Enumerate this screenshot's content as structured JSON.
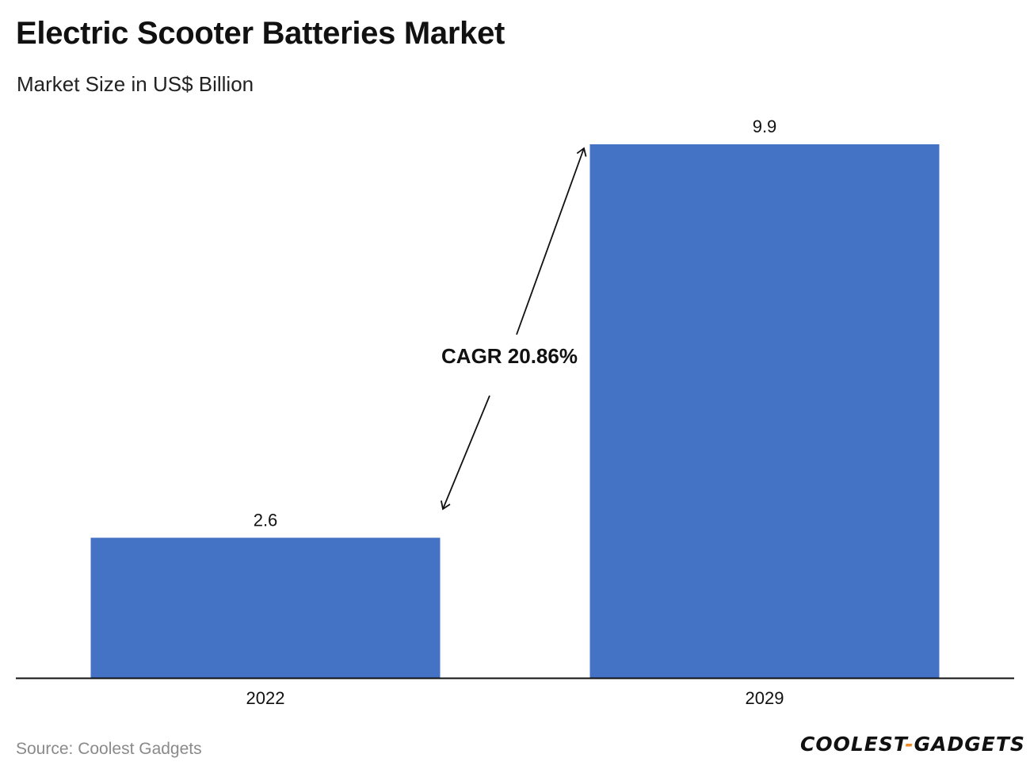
{
  "header": {
    "title": "Electric Scooter Batteries Market",
    "subtitle": "Market Size in US$ Billion"
  },
  "chart_data": {
    "type": "bar",
    "categories": [
      "2022",
      "2029"
    ],
    "values": [
      2.6,
      9.9
    ],
    "data_labels": [
      "2.6",
      "9.9"
    ],
    "title": "Electric Scooter Batteries Market",
    "subtitle": "Market Size in US$ Billion",
    "ylim": [
      0,
      9.9
    ],
    "grid": false,
    "bar_color": "#4472C4",
    "annotation": "CAGR 20.86%"
  },
  "footer": {
    "source": "Source: Coolest Gadgets",
    "logo_left": "COOLEST",
    "logo_dash": "-",
    "logo_right": "GADGETS"
  }
}
